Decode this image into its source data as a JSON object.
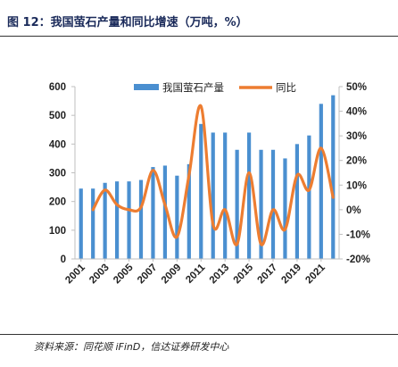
{
  "title": "图 12：我国萤石产量和同比增速（万吨，%）",
  "source": "资料来源：同花顺 iFinD，信达证券研发中心",
  "colors": {
    "bar": "#4a8fd0",
    "line": "#ed7d31",
    "title": "#1a2a5a",
    "axis": "#bfbfbf"
  },
  "chart_data": {
    "type": "bar",
    "categories": [
      "2001",
      "2002",
      "2003",
      "2004",
      "2005",
      "2006",
      "2007",
      "2008",
      "2009",
      "2010",
      "2011",
      "2012",
      "2013",
      "2014",
      "2015",
      "2016",
      "2017",
      "2018",
      "2019",
      "2020",
      "2021",
      "2022"
    ],
    "x_tick_labels": [
      "2001",
      "2003",
      "2005",
      "2007",
      "2009",
      "2011",
      "2013",
      "2015",
      "2017",
      "2019",
      "2021"
    ],
    "series": [
      {
        "name": "我国萤石产量",
        "type": "bar",
        "axis": "left",
        "values": [
          245,
          245,
          265,
          270,
          270,
          275,
          320,
          325,
          290,
          330,
          470,
          440,
          440,
          380,
          440,
          380,
          380,
          350,
          400,
          430,
          540,
          570
        ]
      },
      {
        "name": "同比",
        "type": "line",
        "axis": "right",
        "values": [
          null,
          0,
          8,
          2,
          0,
          1,
          16,
          2,
          -11,
          14,
          42,
          -6,
          0,
          -14,
          15,
          -14,
          0,
          -8,
          14,
          8,
          25,
          5
        ]
      }
    ],
    "ylim_left": [
      0,
      600
    ],
    "yticks_left": [
      0,
      100,
      200,
      300,
      400,
      500,
      600
    ],
    "ylim_right": [
      -20,
      50
    ],
    "yticks_right": [
      "-20%",
      "-10%",
      "0%",
      "10%",
      "20%",
      "30%",
      "40%",
      "50%"
    ],
    "legend": {
      "position": "top-center",
      "entries": [
        "我国萤石产量",
        "同比"
      ]
    },
    "grid": false
  }
}
